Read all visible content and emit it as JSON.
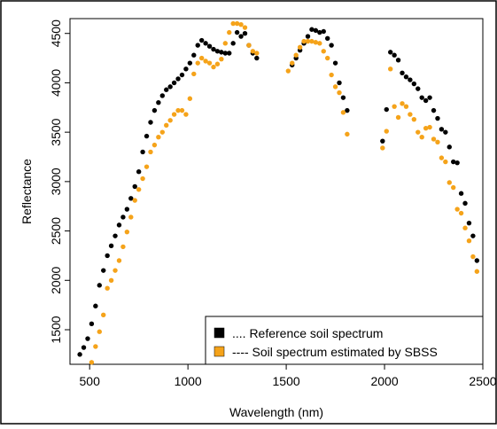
{
  "chart_data": {
    "type": "scatter",
    "title": "",
    "xlabel": "Wavelength (nm)",
    "ylabel": "Reflectance",
    "xlim": [
      400,
      2500
    ],
    "ylim": [
      1150,
      4650
    ],
    "x_ticks": [
      500,
      1000,
      1500,
      2000,
      2500
    ],
    "y_ticks": [
      1500,
      2000,
      2500,
      3000,
      3500,
      4000,
      4500
    ],
    "grid": false,
    "legend_position": "bottom-right",
    "series": [
      {
        "name": ".... Reference soil spectrum",
        "color": "#000000",
        "points": [
          [
            450,
            1250
          ],
          [
            470,
            1320
          ],
          [
            490,
            1410
          ],
          [
            510,
            1560
          ],
          [
            530,
            1740
          ],
          [
            550,
            1950
          ],
          [
            570,
            2100
          ],
          [
            590,
            2250
          ],
          [
            610,
            2350
          ],
          [
            630,
            2450
          ],
          [
            650,
            2560
          ],
          [
            670,
            2640
          ],
          [
            690,
            2720
          ],
          [
            710,
            2830
          ],
          [
            730,
            2950
          ],
          [
            750,
            3100
          ],
          [
            770,
            3300
          ],
          [
            790,
            3460
          ],
          [
            810,
            3600
          ],
          [
            830,
            3720
          ],
          [
            850,
            3800
          ],
          [
            870,
            3870
          ],
          [
            890,
            3930
          ],
          [
            910,
            3960
          ],
          [
            930,
            4000
          ],
          [
            950,
            4040
          ],
          [
            970,
            4080
          ],
          [
            990,
            4140
          ],
          [
            1010,
            4200
          ],
          [
            1030,
            4280
          ],
          [
            1050,
            4380
          ],
          [
            1070,
            4430
          ],
          [
            1090,
            4400
          ],
          [
            1110,
            4370
          ],
          [
            1130,
            4340
          ],
          [
            1150,
            4320
          ],
          [
            1170,
            4310
          ],
          [
            1190,
            4300
          ],
          [
            1210,
            4300
          ],
          [
            1230,
            4400
          ],
          [
            1250,
            4510
          ],
          [
            1270,
            4470
          ],
          [
            1290,
            4500
          ],
          [
            1310,
            4380
          ],
          [
            1330,
            4300
          ],
          [
            1350,
            4250
          ],
          [
            1530,
            4180
          ],
          [
            1550,
            4250
          ],
          [
            1570,
            4330
          ],
          [
            1590,
            4400
          ],
          [
            1610,
            4470
          ],
          [
            1630,
            4540
          ],
          [
            1650,
            4530
          ],
          [
            1670,
            4510
          ],
          [
            1690,
            4520
          ],
          [
            1710,
            4450
          ],
          [
            1730,
            4380
          ],
          [
            1750,
            4200
          ],
          [
            1770,
            4000
          ],
          [
            1790,
            3850
          ],
          [
            1810,
            3720
          ],
          [
            1990,
            3410
          ],
          [
            2010,
            3730
          ],
          [
            2030,
            4310
          ],
          [
            2050,
            4280
          ],
          [
            2070,
            4230
          ],
          [
            2090,
            4100
          ],
          [
            2110,
            4060
          ],
          [
            2130,
            4030
          ],
          [
            2150,
            3990
          ],
          [
            2170,
            3940
          ],
          [
            2190,
            3850
          ],
          [
            2210,
            3820
          ],
          [
            2230,
            3850
          ],
          [
            2250,
            3720
          ],
          [
            2270,
            3640
          ],
          [
            2290,
            3530
          ],
          [
            2310,
            3500
          ],
          [
            2330,
            3350
          ],
          [
            2350,
            3200
          ],
          [
            2370,
            3190
          ],
          [
            2390,
            2880
          ],
          [
            2410,
            2780
          ],
          [
            2430,
            2580
          ],
          [
            2450,
            2450
          ],
          [
            2470,
            2200
          ]
        ]
      },
      {
        "name": "---- Soil spectrum estimated by SBSS",
        "color": "#F5A31A",
        "points": [
          [
            510,
            1170
          ],
          [
            530,
            1330
          ],
          [
            550,
            1480
          ],
          [
            570,
            1650
          ],
          [
            590,
            1920
          ],
          [
            610,
            2000
          ],
          [
            630,
            2100
          ],
          [
            650,
            2200
          ],
          [
            670,
            2340
          ],
          [
            690,
            2490
          ],
          [
            710,
            2640
          ],
          [
            730,
            2810
          ],
          [
            750,
            2920
          ],
          [
            770,
            3030
          ],
          [
            790,
            3150
          ],
          [
            810,
            3300
          ],
          [
            830,
            3370
          ],
          [
            850,
            3450
          ],
          [
            870,
            3500
          ],
          [
            890,
            3570
          ],
          [
            910,
            3620
          ],
          [
            930,
            3680
          ],
          [
            950,
            3720
          ],
          [
            970,
            3720
          ],
          [
            990,
            3680
          ],
          [
            1010,
            3840
          ],
          [
            1030,
            4090
          ],
          [
            1050,
            4200
          ],
          [
            1070,
            4250
          ],
          [
            1090,
            4220
          ],
          [
            1110,
            4200
          ],
          [
            1130,
            4160
          ],
          [
            1150,
            4190
          ],
          [
            1170,
            4240
          ],
          [
            1190,
            4400
          ],
          [
            1210,
            4510
          ],
          [
            1230,
            4600
          ],
          [
            1250,
            4600
          ],
          [
            1270,
            4590
          ],
          [
            1290,
            4560
          ],
          [
            1310,
            4380
          ],
          [
            1330,
            4320
          ],
          [
            1350,
            4300
          ],
          [
            1510,
            4120
          ],
          [
            1530,
            4200
          ],
          [
            1550,
            4280
          ],
          [
            1570,
            4360
          ],
          [
            1590,
            4420
          ],
          [
            1610,
            4420
          ],
          [
            1630,
            4420
          ],
          [
            1650,
            4410
          ],
          [
            1670,
            4400
          ],
          [
            1690,
            4320
          ],
          [
            1710,
            4250
          ],
          [
            1730,
            4080
          ],
          [
            1750,
            3960
          ],
          [
            1770,
            3900
          ],
          [
            1790,
            3700
          ],
          [
            1810,
            3480
          ],
          [
            1990,
            3340
          ],
          [
            2010,
            3510
          ],
          [
            2030,
            4140
          ],
          [
            2050,
            3760
          ],
          [
            2070,
            3650
          ],
          [
            2090,
            3790
          ],
          [
            2110,
            3760
          ],
          [
            2130,
            3680
          ],
          [
            2150,
            3630
          ],
          [
            2170,
            3500
          ],
          [
            2190,
            3450
          ],
          [
            2210,
            3540
          ],
          [
            2230,
            3550
          ],
          [
            2250,
            3430
          ],
          [
            2270,
            3400
          ],
          [
            2290,
            3240
          ],
          [
            2310,
            3200
          ],
          [
            2330,
            2990
          ],
          [
            2350,
            2940
          ],
          [
            2370,
            2720
          ],
          [
            2390,
            2680
          ],
          [
            2410,
            2530
          ],
          [
            2430,
            2400
          ],
          [
            2450,
            2240
          ],
          [
            2470,
            2090
          ]
        ]
      }
    ]
  }
}
